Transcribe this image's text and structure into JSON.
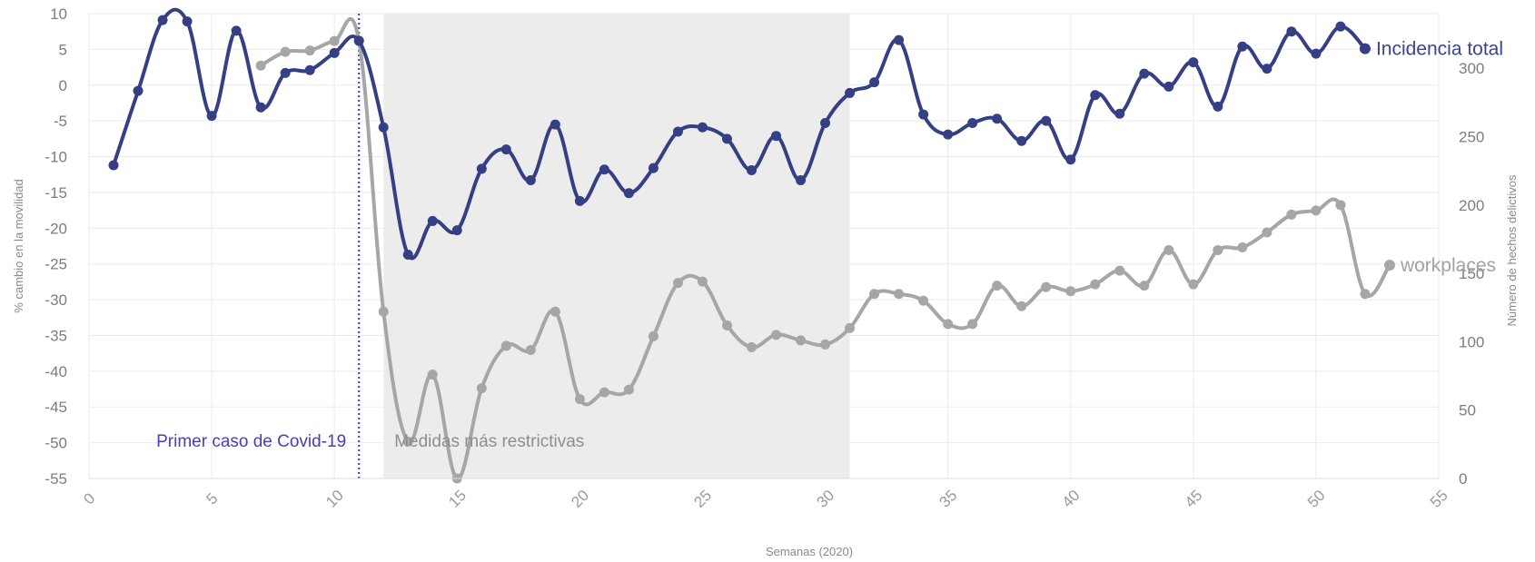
{
  "chart_data": {
    "type": "line",
    "xlabel": "Semanas (2020)",
    "ylabel_left": "% cambio en la movilidad",
    "ylabel_right": "Número de hechos delictivos",
    "xlim": [
      0,
      55
    ],
    "ylim_left": [
      -55,
      10
    ],
    "ylim_right": [
      0,
      340
    ],
    "x_ticks": [
      "0",
      "5",
      "10",
      "15",
      "20",
      "25",
      "30",
      "35",
      "40",
      "45",
      "50",
      "55"
    ],
    "y_left_ticks": [
      "10",
      "5",
      "0",
      "-5",
      "-10",
      "-15",
      "-20",
      "-25",
      "-30",
      "-35",
      "-40",
      "-45",
      "-50",
      "-55"
    ],
    "y_right_ticks": [
      "300",
      "250",
      "200",
      "150",
      "100",
      "50",
      "0"
    ],
    "grid": true,
    "shaded_region": {
      "x_start": 12,
      "x_end": 31,
      "label": "Medidas más restrictivas"
    },
    "vertical_line": {
      "x": 11,
      "label": "Primer caso de Covid-19"
    },
    "series": [
      {
        "name": "Incidencia total",
        "axis": "left",
        "color": "#343f84",
        "x": [
          1,
          2,
          3,
          4,
          5,
          6,
          7,
          8,
          9,
          10,
          11,
          12,
          13,
          14,
          15,
          16,
          17,
          18,
          19,
          20,
          21,
          22,
          23,
          24,
          25,
          26,
          27,
          28,
          29,
          30,
          31,
          32,
          33,
          34,
          35,
          36,
          37,
          38,
          39,
          40,
          41,
          42,
          43,
          44,
          45,
          46,
          47,
          48,
          49,
          50,
          51,
          52
        ],
        "values": [
          -11.2,
          -0.8,
          9.1,
          8.9,
          -4.3,
          7.6,
          -3.1,
          1.7,
          2.1,
          4.5,
          6.2,
          -5.9,
          -23.7,
          -19.0,
          -20.3,
          -11.7,
          -9.0,
          -13.3,
          -5.5,
          -16.2,
          -11.8,
          -15.1,
          -11.6,
          -6.5,
          -5.9,
          -7.5,
          -11.9,
          -7.1,
          -13.3,
          -5.3,
          -1.1,
          0.4,
          6.3,
          -4.1,
          -6.9,
          -5.3,
          -4.7,
          -7.8,
          -5.0,
          -10.4,
          -1.4,
          -4.0,
          1.6,
          -0.2,
          3.2,
          -3.0,
          5.4,
          2.3,
          7.5,
          4.4,
          8.2,
          5.1
        ]
      },
      {
        "name": "workplaces",
        "axis": "right",
        "color": "#a4a6a8",
        "x": [
          7,
          8,
          9,
          10,
          11,
          12,
          13,
          14,
          15,
          16,
          17,
          18,
          19,
          20,
          21,
          22,
          23,
          24,
          25,
          26,
          27,
          28,
          29,
          30,
          31,
          32,
          33,
          34,
          35,
          36,
          37,
          38,
          39,
          40,
          41,
          42,
          43,
          44,
          45,
          46,
          47,
          48,
          49,
          50,
          51,
          52,
          53
        ],
        "values": [
          302,
          312,
          313,
          320,
          320,
          122,
          27,
          76,
          0,
          66,
          97,
          94,
          122,
          58,
          63,
          65,
          104,
          143,
          144,
          112,
          96,
          105,
          101,
          98,
          110,
          135,
          135,
          130,
          113,
          113,
          141,
          126,
          140,
          137,
          142,
          152,
          141,
          167,
          142,
          167,
          169,
          180,
          193,
          196,
          200,
          135,
          156
        ]
      }
    ]
  }
}
